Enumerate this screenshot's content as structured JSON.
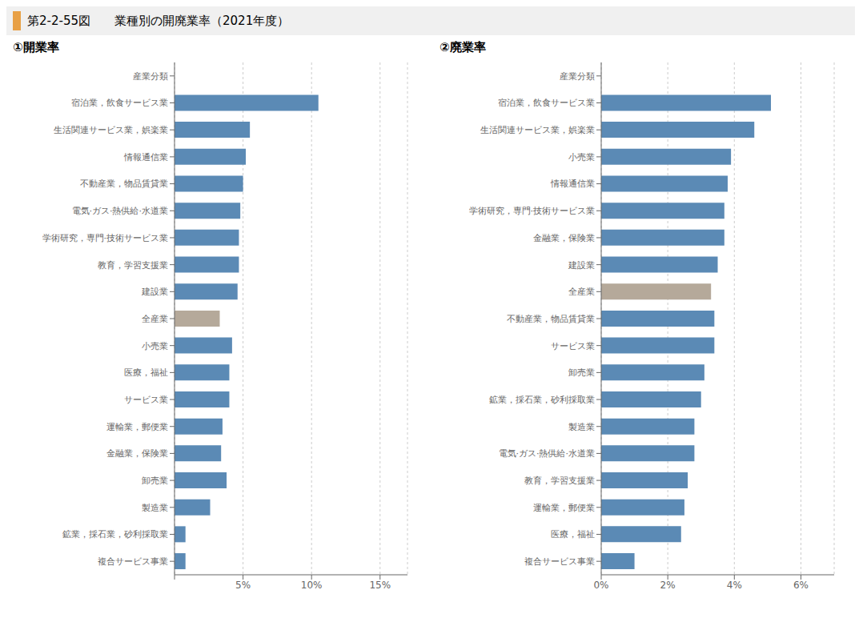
{
  "title": "第2-2-55図　　業種別の開廃業率（2021年度）",
  "chart_data": [
    {
      "type": "bar",
      "title": "①開業率",
      "orientation": "horizontal",
      "grid": true,
      "categories": [
        "産業分類",
        "宿泊業，飲食サービス業",
        "生活関連サービス業，娯楽業",
        "情報通信業",
        "不動産業，物品賃貸業",
        "電気·ガス·熱供給·水道業",
        "学術研究，専門·技術サービス業",
        "教育，学習支援業",
        "建設業",
        "全産業",
        "小売業",
        "医療，福祉",
        "サービス業",
        "運輸業，郵便業",
        "金融業，保険業",
        "卸売業",
        "製造業",
        "鉱業，採石業，砂利採取業",
        "複合サービス事業"
      ],
      "values": [
        0,
        10.5,
        5.5,
        5.2,
        5.0,
        4.8,
        4.7,
        4.7,
        4.6,
        3.3,
        4.2,
        4.0,
        4.0,
        3.5,
        3.4,
        3.8,
        2.6,
        0.8,
        0.8
      ],
      "colors": [
        "#ffffff",
        "#5b8ab5",
        "#5b8ab5",
        "#5b8ab5",
        "#5b8ab5",
        "#5b8ab5",
        "#5b8ab5",
        "#5b8ab5",
        "#5b8ab5",
        "#b5a99a",
        "#5b8ab5",
        "#5b8ab5",
        "#5b8ab5",
        "#5b8ab5",
        "#5b8ab5",
        "#5b8ab5",
        "#5b8ab5",
        "#5b8ab5",
        "#5b8ab5"
      ],
      "xlim": [
        0,
        17
      ],
      "xticks": [
        {
          "value": 0,
          "label": null
        },
        {
          "value": 5,
          "label": "5%"
        },
        {
          "value": 10,
          "label": "10%"
        },
        {
          "value": 15,
          "label": "15%"
        }
      ]
    },
    {
      "type": "bar",
      "title": "②廃業率",
      "orientation": "horizontal",
      "grid": true,
      "categories": [
        "産業分類",
        "宿泊業，飲食サービス業",
        "生活関連サービス業，娯楽業",
        "小売業",
        "情報通信業",
        "学術研究，専門·技術サービス業",
        "金融業，保険業",
        "建設業",
        "全産業",
        "不動産業，物品賃貸業",
        "サービス業",
        "卸売業",
        "鉱業，採石業，砂利採取業",
        "製造業",
        "電気·ガス·熱供給·水道業",
        "教育，学習支援業",
        "運輸業，郵便業",
        "医療，福祉",
        "複合サービス事業"
      ],
      "values": [
        0,
        5.1,
        4.6,
        3.9,
        3.8,
        3.7,
        3.7,
        3.5,
        3.3,
        3.4,
        3.4,
        3.1,
        3.0,
        2.8,
        2.8,
        2.6,
        2.5,
        2.4,
        1.0
      ],
      "colors": [
        "#ffffff",
        "#5b8ab5",
        "#5b8ab5",
        "#5b8ab5",
        "#5b8ab5",
        "#5b8ab5",
        "#5b8ab5",
        "#5b8ab5",
        "#b5a99a",
        "#5b8ab5",
        "#5b8ab5",
        "#5b8ab5",
        "#5b8ab5",
        "#5b8ab5",
        "#5b8ab5",
        "#5b8ab5",
        "#5b8ab5",
        "#5b8ab5",
        "#5b8ab5"
      ],
      "xlim": [
        0,
        7
      ],
      "xticks": [
        {
          "value": 0,
          "label": "0%"
        },
        {
          "value": 2,
          "label": "2%"
        },
        {
          "value": 4,
          "label": "4%"
        },
        {
          "value": 6,
          "label": "6%"
        }
      ]
    }
  ]
}
